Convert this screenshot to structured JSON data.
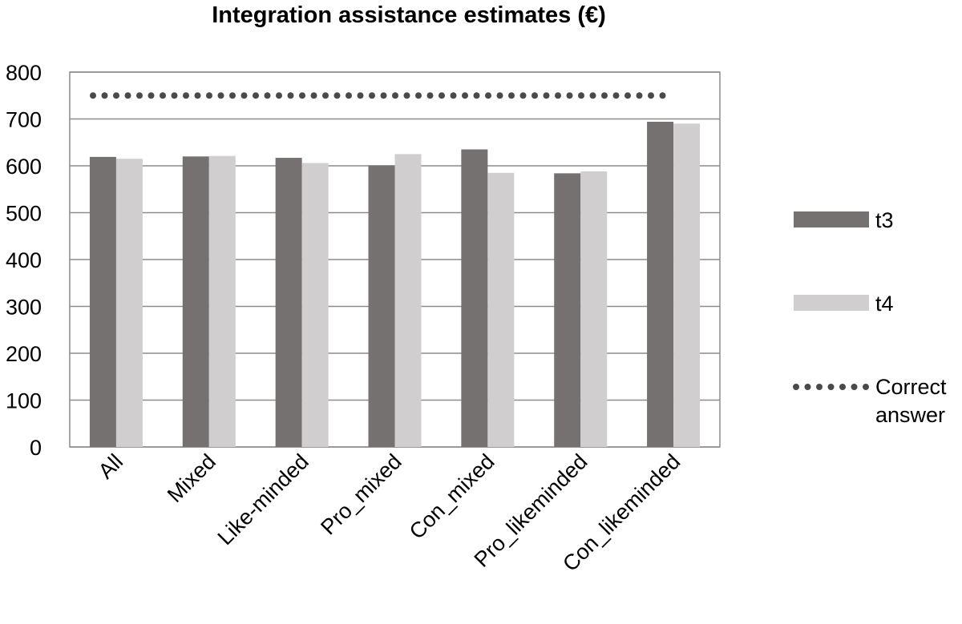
{
  "chart_data": {
    "type": "bar",
    "title": "Integration assistance estimates (€)",
    "categories": [
      "All",
      "Mixed",
      "Like-minded",
      "Pro_mixed",
      "Con_mixed",
      "Pro_likeminded",
      "Con_likeminded"
    ],
    "series": [
      {
        "name": "t3",
        "color": "#757171",
        "values": [
          619,
          620,
          617,
          601,
          635,
          584,
          694
        ]
      },
      {
        "name": "t4",
        "color": "#d0cece",
        "values": [
          615,
          621,
          606,
          625,
          585,
          588,
          690
        ]
      }
    ],
    "reference_line": {
      "name": "Correct answer",
      "value": 750,
      "color": "#4a4a4a",
      "style": "dotted"
    },
    "ylim": [
      0,
      800
    ],
    "yticks": [
      0,
      100,
      200,
      300,
      400,
      500,
      600,
      700,
      800
    ],
    "xlabel": "",
    "ylabel": "",
    "grid": true,
    "legend": {
      "position": "right",
      "items": [
        {
          "label_lines": [
            "t3"
          ]
        },
        {
          "label_lines": [
            "t4"
          ]
        },
        {
          "label_lines": [
            "Correct",
            "answer"
          ]
        }
      ]
    }
  }
}
